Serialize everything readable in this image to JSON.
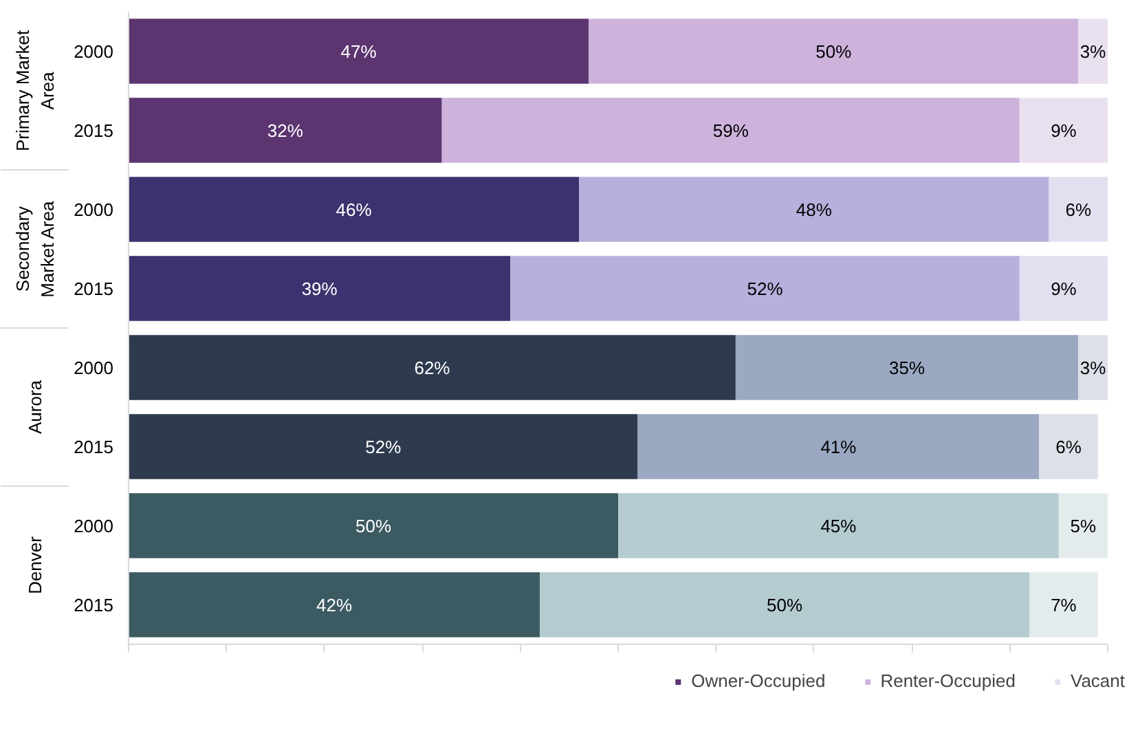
{
  "chart_data": {
    "type": "bar",
    "orientation": "horizontal",
    "stacked": true,
    "categories": [
      "2000",
      "2015",
      "2000",
      "2015",
      "2000",
      "2015",
      "2000",
      "2015"
    ],
    "annotations": [
      "Primary Market Area",
      "Secondary Market Area",
      "Aurora",
      "Denver"
    ],
    "series": [
      {
        "name": "Owner-Occupied",
        "color": "#5c3470",
        "colors": [
          "#5c3470",
          "#5c3470",
          "#3b326f",
          "#3b326f",
          "#2e3a4e",
          "#2e3a4e",
          "#3c5a62",
          "#3c5a62"
        ],
        "values": [
          47,
          32,
          46,
          39,
          62,
          52,
          50,
          42
        ],
        "value_labels": [
          "47%",
          "32%",
          "46%",
          "39%",
          "62%",
          "52%",
          "50%",
          "42%"
        ]
      },
      {
        "name": "Renter-Occupied",
        "color": "#cdb3dc",
        "colors": [
          "#cdb3dc",
          "#cdb3dc",
          "#b6b0dc",
          "#b6b0dc",
          "#9ba8c2",
          "#9ba8c2",
          "#b4cbd0",
          "#b4cbd0"
        ],
        "values": [
          50,
          59,
          48,
          52,
          35,
          41,
          45,
          50
        ],
        "value_labels": [
          "50%",
          "59%",
          "48%",
          "52%",
          "35%",
          "41%",
          "45%",
          "50%"
        ]
      },
      {
        "name": "Vacant",
        "color": "#e9e0ef",
        "colors": [
          "#e9e0ef",
          "#e9e0ef",
          "#e2e0f0",
          "#e2e0f0",
          "#dde0e8",
          "#dde0e8",
          "#e3ebed",
          "#e3ebed"
        ],
        "values": [
          3,
          9,
          6,
          9,
          3,
          6,
          5,
          7
        ],
        "value_labels": [
          "3%",
          "9%",
          "6%",
          "9%",
          "3%",
          "6%",
          "5%",
          "7%"
        ]
      }
    ],
    "xlim": [
      0,
      100
    ],
    "xticks": [
      {
        "value": 0,
        "label": null
      },
      {
        "value": 10,
        "label": null
      },
      {
        "value": 20,
        "label": null
      },
      {
        "value": 30,
        "label": null
      },
      {
        "value": 40,
        "label": null
      },
      {
        "value": 50,
        "label": null
      },
      {
        "value": 60,
        "label": null
      },
      {
        "value": 70,
        "label": null
      },
      {
        "value": 80,
        "label": null
      },
      {
        "value": 90,
        "label": null
      },
      {
        "value": 100,
        "label": null
      }
    ],
    "tick_labels": "y",
    "grid": false,
    "legend": "bottom right"
  }
}
